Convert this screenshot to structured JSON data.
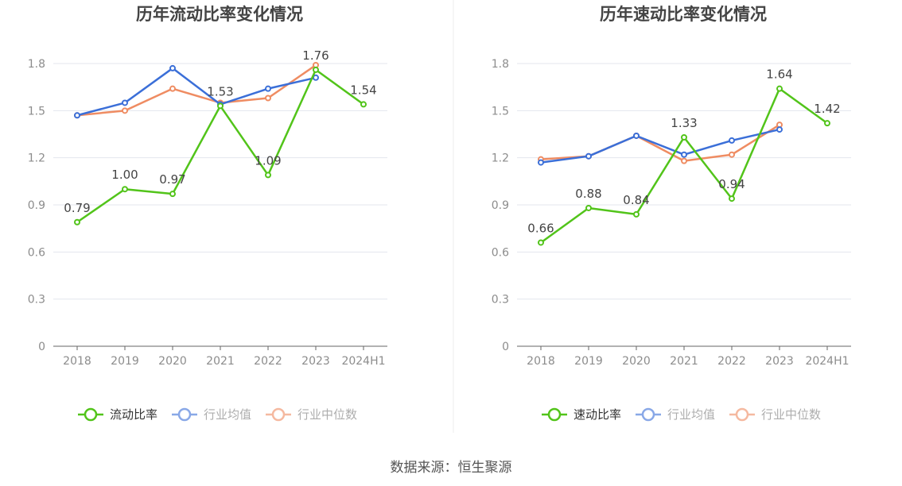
{
  "colors": {
    "company": "#52c41a",
    "industry_avg": "#3b6fd8",
    "industry_median": "#ef8c62",
    "grid": "#e3e6ee",
    "axis": "#666666",
    "tick_text": "#8c8c8c",
    "title": "#444444"
  },
  "source_text": "数据来源：恒生聚源",
  "chart_data": [
    {
      "type": "line",
      "title": "历年流动比率变化情况",
      "categories": [
        "2018",
        "2019",
        "2020",
        "2021",
        "2022",
        "2023",
        "2024H1"
      ],
      "y_ticks": [
        "0",
        "0.3",
        "0.6",
        "0.9",
        "1.2",
        "1.5",
        "1.8"
      ],
      "ylim": [
        0,
        1.8
      ],
      "grid": true,
      "legend_position": "bottom",
      "series": [
        {
          "name": "流动比率",
          "key": "company",
          "values": [
            0.79,
            1.0,
            0.97,
            1.53,
            1.09,
            1.76,
            1.54
          ],
          "labels": [
            "0.79",
            "1.00",
            "0.97",
            "1.53",
            "1.09",
            "1.76",
            "1.54"
          ]
        },
        {
          "name": "行业均值",
          "key": "industry_avg",
          "values": [
            1.47,
            1.55,
            1.77,
            1.54,
            1.64,
            1.71,
            null
          ]
        },
        {
          "name": "行业中位数",
          "key": "industry_median",
          "values": [
            1.47,
            1.5,
            1.64,
            1.55,
            1.58,
            1.79,
            null
          ]
        }
      ]
    },
    {
      "type": "line",
      "title": "历年速动比率变化情况",
      "categories": [
        "2018",
        "2019",
        "2020",
        "2021",
        "2022",
        "2023",
        "2024H1"
      ],
      "y_ticks": [
        "0",
        "0.3",
        "0.6",
        "0.9",
        "1.2",
        "1.5",
        "1.8"
      ],
      "ylim": [
        0,
        1.8
      ],
      "grid": true,
      "legend_position": "bottom",
      "series": [
        {
          "name": "速动比率",
          "key": "company",
          "values": [
            0.66,
            0.88,
            0.84,
            1.33,
            0.94,
            1.64,
            1.42
          ],
          "labels": [
            "0.66",
            "0.88",
            "0.84",
            "1.33",
            "0.94",
            "1.64",
            "1.42"
          ]
        },
        {
          "name": "行业均值",
          "key": "industry_avg",
          "values": [
            1.17,
            1.21,
            1.34,
            1.22,
            1.31,
            1.38,
            null
          ]
        },
        {
          "name": "行业中位数",
          "key": "industry_median",
          "values": [
            1.19,
            1.21,
            1.34,
            1.18,
            1.22,
            1.41,
            null
          ]
        }
      ]
    }
  ]
}
